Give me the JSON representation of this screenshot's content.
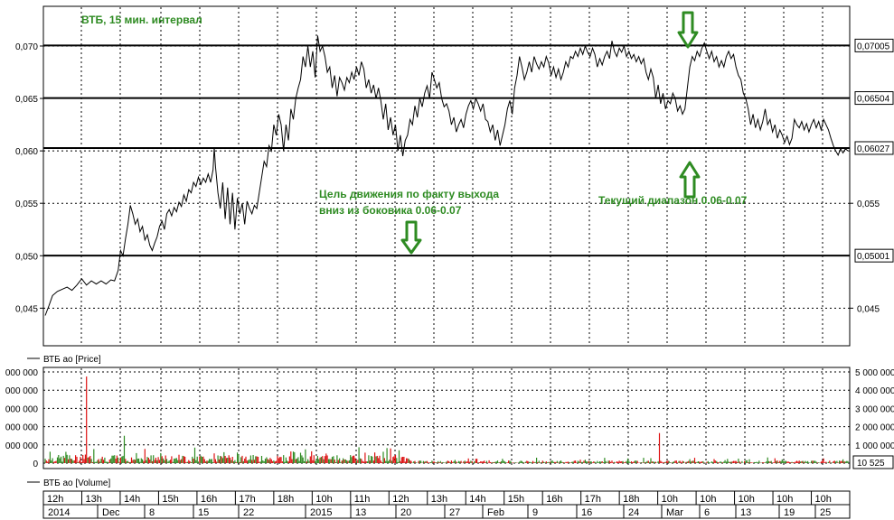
{
  "chart_data": {
    "type": "line",
    "title": "ВТБ, 15 мин. интервал",
    "price_legend": "ВТБ ао [Price]",
    "volume_legend": "ВТБ ao [Volume]",
    "ylim": [
      0.0415,
      0.0737
    ],
    "y_ticks": [
      {
        "value": 0.045,
        "label": "0,045"
      },
      {
        "value": 0.05,
        "label": "0,050"
      },
      {
        "value": 0.055,
        "label": "0,055"
      },
      {
        "value": 0.06,
        "label": "0,060"
      },
      {
        "value": 0.065,
        "label": "0,065"
      },
      {
        "value": 0.07,
        "label": "0,070"
      }
    ],
    "right_ticks": [
      {
        "value": 0.055,
        "label": "0,055"
      },
      {
        "value": 0.045,
        "label": "0,045"
      }
    ],
    "levels": [
      {
        "value": 0.07005,
        "label": "0,07005"
      },
      {
        "value": 0.06504,
        "label": "0,06504"
      },
      {
        "value": 0.06027,
        "label": "0,06027"
      },
      {
        "value": 0.05001,
        "label": "0,05001"
      }
    ],
    "annotations": [
      {
        "text": "Цель движения по факту выхода",
        "color": "#2e8b22"
      },
      {
        "text": "вниз из боковика 0.06-0.07",
        "color": "#2e8b22"
      },
      {
        "text": "Текущий диапазон 0.06-0.07",
        "color": "#2e8b22"
      }
    ],
    "price_series": [
      [
        0,
        0.0443
      ],
      [
        3,
        0.0452
      ],
      [
        6,
        0.0462
      ],
      [
        10,
        0.0466
      ],
      [
        14,
        0.0468
      ],
      [
        18,
        0.047
      ],
      [
        22,
        0.0467
      ],
      [
        26,
        0.0472
      ],
      [
        30,
        0.0478
      ],
      [
        34,
        0.0472
      ],
      [
        38,
        0.0476
      ],
      [
        42,
        0.0473
      ],
      [
        46,
        0.0476
      ],
      [
        50,
        0.0473
      ],
      [
        54,
        0.0477
      ],
      [
        57,
        0.0476
      ],
      [
        60,
        0.0486
      ],
      [
        62,
        0.0505
      ],
      [
        64,
        0.05
      ],
      [
        66,
        0.0516
      ],
      [
        68,
        0.053
      ],
      [
        70,
        0.0548
      ],
      [
        72,
        0.054
      ],
      [
        74,
        0.053
      ],
      [
        76,
        0.0535
      ],
      [
        78,
        0.0523
      ],
      [
        80,
        0.0528
      ],
      [
        82,
        0.0515
      ],
      [
        84,
        0.052
      ],
      [
        86,
        0.051
      ],
      [
        88,
        0.0505
      ],
      [
        90,
        0.0512
      ],
      [
        92,
        0.0518
      ],
      [
        94,
        0.0528
      ],
      [
        96,
        0.0533
      ],
      [
        98,
        0.0525
      ],
      [
        100,
        0.054
      ],
      [
        102,
        0.0544
      ],
      [
        104,
        0.0538
      ],
      [
        106,
        0.0546
      ],
      [
        108,
        0.0542
      ],
      [
        110,
        0.0551
      ],
      [
        112,
        0.0547
      ],
      [
        114,
        0.0558
      ],
      [
        116,
        0.0552
      ],
      [
        118,
        0.0563
      ],
      [
        120,
        0.056
      ],
      [
        122,
        0.057
      ],
      [
        124,
        0.0566
      ],
      [
        126,
        0.0575
      ],
      [
        128,
        0.0568
      ],
      [
        130,
        0.0574
      ],
      [
        132,
        0.057
      ],
      [
        134,
        0.0578
      ],
      [
        136,
        0.057
      ],
      [
        138,
        0.0582
      ],
      [
        139,
        0.0603
      ],
      [
        140,
        0.0585
      ],
      [
        142,
        0.056
      ],
      [
        144,
        0.0545
      ],
      [
        146,
        0.057
      ],
      [
        148,
        0.0535
      ],
      [
        150,
        0.0565
      ],
      [
        152,
        0.053
      ],
      [
        154,
        0.056
      ],
      [
        156,
        0.0525
      ],
      [
        158,
        0.0555
      ],
      [
        160,
        0.054
      ],
      [
        162,
        0.055
      ],
      [
        164,
        0.053
      ],
      [
        166,
        0.0552
      ],
      [
        168,
        0.0545
      ],
      [
        170,
        0.054
      ],
      [
        172,
        0.0548
      ],
      [
        174,
        0.0545
      ],
      [
        176,
        0.056
      ],
      [
        178,
        0.0575
      ],
      [
        180,
        0.059
      ],
      [
        182,
        0.0585
      ],
      [
        184,
        0.0605
      ],
      [
        186,
        0.06
      ],
      [
        188,
        0.0625
      ],
      [
        190,
        0.0615
      ],
      [
        192,
        0.0635
      ],
      [
        194,
        0.0625
      ],
      [
        196,
        0.06
      ],
      [
        198,
        0.0625
      ],
      [
        200,
        0.061
      ],
      [
        202,
        0.064
      ],
      [
        204,
        0.063
      ],
      [
        206,
        0.065
      ],
      [
        208,
        0.066
      ],
      [
        210,
        0.0668
      ],
      [
        212,
        0.069
      ],
      [
        214,
        0.068
      ],
      [
        216,
        0.07
      ],
      [
        218,
        0.068
      ],
      [
        220,
        0.0695
      ],
      [
        222,
        0.067
      ],
      [
        224,
        0.071
      ],
      [
        226,
        0.0695
      ],
      [
        228,
        0.07
      ],
      [
        230,
        0.069
      ],
      [
        232,
        0.0675
      ],
      [
        234,
        0.068
      ],
      [
        236,
        0.066
      ],
      [
        238,
        0.0672
      ],
      [
        240,
        0.0652
      ],
      [
        242,
        0.067
      ],
      [
        244,
        0.0665
      ],
      [
        246,
        0.0658
      ],
      [
        248,
        0.067
      ],
      [
        250,
        0.0665
      ],
      [
        252,
        0.0675
      ],
      [
        254,
        0.0668
      ],
      [
        256,
        0.068
      ],
      [
        258,
        0.0672
      ],
      [
        260,
        0.0685
      ],
      [
        262,
        0.0678
      ],
      [
        264,
        0.066
      ],
      [
        266,
        0.0668
      ],
      [
        268,
        0.0655
      ],
      [
        270,
        0.0663
      ],
      [
        272,
        0.065
      ],
      [
        274,
        0.066
      ],
      [
        276,
        0.0648
      ],
      [
        278,
        0.063
      ],
      [
        280,
        0.0645
      ],
      [
        282,
        0.062
      ],
      [
        284,
        0.0632
      ],
      [
        286,
        0.0615
      ],
      [
        288,
        0.0625
      ],
      [
        290,
        0.06
      ],
      [
        292,
        0.0615
      ],
      [
        294,
        0.0595
      ],
      [
        296,
        0.061
      ],
      [
        298,
        0.0615
      ],
      [
        300,
        0.063
      ],
      [
        302,
        0.0625
      ],
      [
        304,
        0.0643
      ],
      [
        306,
        0.0632
      ],
      [
        308,
        0.065
      ],
      [
        310,
        0.0642
      ],
      [
        312,
        0.0655
      ],
      [
        314,
        0.0662
      ],
      [
        316,
        0.065
      ],
      [
        318,
        0.0675
      ],
      [
        320,
        0.0668
      ],
      [
        322,
        0.066
      ],
      [
        324,
        0.0665
      ],
      [
        326,
        0.065
      ],
      [
        328,
        0.0642
      ],
      [
        330,
        0.0645
      ],
      [
        332,
        0.0638
      ],
      [
        334,
        0.0625
      ],
      [
        336,
        0.0632
      ],
      [
        338,
        0.0618
      ],
      [
        340,
        0.0625
      ],
      [
        342,
        0.063
      ],
      [
        344,
        0.0622
      ],
      [
        346,
        0.0635
      ],
      [
        348,
        0.0643
      ],
      [
        350,
        0.0648
      ],
      [
        352,
        0.064
      ],
      [
        354,
        0.065
      ],
      [
        356,
        0.0645
      ],
      [
        358,
        0.0638
      ],
      [
        360,
        0.0645
      ],
      [
        362,
        0.063
      ],
      [
        364,
        0.0628
      ],
      [
        366,
        0.0618
      ],
      [
        368,
        0.0625
      ],
      [
        370,
        0.061
      ],
      [
        372,
        0.062
      ],
      [
        374,
        0.0605
      ],
      [
        376,
        0.0615
      ],
      [
        378,
        0.0625
      ],
      [
        380,
        0.064
      ],
      [
        382,
        0.0648
      ],
      [
        384,
        0.0635
      ],
      [
        386,
        0.066
      ],
      [
        388,
        0.0672
      ],
      [
        390,
        0.069
      ],
      [
        392,
        0.068
      ],
      [
        394,
        0.0668
      ],
      [
        396,
        0.0675
      ],
      [
        398,
        0.0685
      ],
      [
        400,
        0.0675
      ],
      [
        402,
        0.069
      ],
      [
        404,
        0.0683
      ],
      [
        406,
        0.0678
      ],
      [
        408,
        0.0685
      ],
      [
        410,
        0.068
      ],
      [
        412,
        0.069
      ],
      [
        414,
        0.0684
      ],
      [
        416,
        0.0672
      ],
      [
        418,
        0.068
      ],
      [
        420,
        0.067
      ],
      [
        422,
        0.0678
      ],
      [
        424,
        0.0668
      ],
      [
        426,
        0.0675
      ],
      [
        428,
        0.0685
      ],
      [
        430,
        0.068
      ],
      [
        432,
        0.069
      ],
      [
        434,
        0.0688
      ],
      [
        436,
        0.0695
      ],
      [
        438,
        0.069
      ],
      [
        440,
        0.0698
      ],
      [
        442,
        0.0692
      ],
      [
        444,
        0.07
      ],
      [
        446,
        0.0694
      ],
      [
        448,
        0.069
      ],
      [
        450,
        0.0698
      ],
      [
        452,
        0.0692
      ],
      [
        454,
        0.068
      ],
      [
        456,
        0.0688
      ],
      [
        458,
        0.0682
      ],
      [
        460,
        0.069
      ],
      [
        462,
        0.0695
      ],
      [
        464,
        0.0688
      ],
      [
        466,
        0.0705
      ],
      [
        468,
        0.0695
      ],
      [
        470,
        0.069
      ],
      [
        472,
        0.0698
      ],
      [
        474,
        0.0694
      ],
      [
        476,
        0.07
      ],
      [
        478,
        0.069
      ],
      [
        480,
        0.0695
      ],
      [
        482,
        0.0688
      ],
      [
        484,
        0.0692
      ],
      [
        486,
        0.0685
      ],
      [
        488,
        0.069
      ],
      [
        490,
        0.0683
      ],
      [
        492,
        0.0688
      ],
      [
        494,
        0.0675
      ],
      [
        496,
        0.0668
      ],
      [
        498,
        0.0678
      ],
      [
        500,
        0.067
      ],
      [
        502,
        0.065
      ],
      [
        504,
        0.0663
      ],
      [
        506,
        0.0645
      ],
      [
        508,
        0.0655
      ],
      [
        510,
        0.064
      ],
      [
        512,
        0.0648
      ],
      [
        514,
        0.0645
      ],
      [
        516,
        0.0655
      ],
      [
        518,
        0.065
      ],
      [
        520,
        0.0638
      ],
      [
        522,
        0.0643
      ],
      [
        524,
        0.0635
      ],
      [
        526,
        0.064
      ],
      [
        528,
        0.066
      ],
      [
        530,
        0.068
      ],
      [
        532,
        0.069
      ],
      [
        534,
        0.0686
      ],
      [
        536,
        0.0695
      ],
      [
        538,
        0.069
      ],
      [
        540,
        0.0698
      ],
      [
        542,
        0.0703
      ],
      [
        544,
        0.0695
      ],
      [
        546,
        0.0688
      ],
      [
        548,
        0.0695
      ],
      [
        550,
        0.0685
      ],
      [
        552,
        0.069
      ],
      [
        554,
        0.068
      ],
      [
        556,
        0.0686
      ],
      [
        558,
        0.068
      ],
      [
        560,
        0.069
      ],
      [
        562,
        0.0695
      ],
      [
        564,
        0.0688
      ],
      [
        566,
        0.0692
      ],
      [
        568,
        0.068
      ],
      [
        570,
        0.0672
      ],
      [
        572,
        0.0668
      ],
      [
        574,
        0.0655
      ],
      [
        576,
        0.065
      ],
      [
        578,
        0.064
      ],
      [
        580,
        0.0625
      ],
      [
        582,
        0.0635
      ],
      [
        584,
        0.0622
      ],
      [
        586,
        0.063
      ],
      [
        588,
        0.062
      ],
      [
        590,
        0.0628
      ],
      [
        592,
        0.064
      ],
      [
        594,
        0.0625
      ],
      [
        596,
        0.063
      ],
      [
        598,
        0.0618
      ],
      [
        600,
        0.0625
      ],
      [
        602,
        0.0612
      ],
      [
        604,
        0.062
      ],
      [
        606,
        0.0615
      ],
      [
        608,
        0.0608
      ],
      [
        610,
        0.0614
      ],
      [
        612,
        0.0606
      ],
      [
        614,
        0.0612
      ],
      [
        616,
        0.063
      ],
      [
        618,
        0.0625
      ],
      [
        620,
        0.0622
      ],
      [
        622,
        0.0628
      ],
      [
        624,
        0.062
      ],
      [
        626,
        0.0626
      ],
      [
        628,
        0.0618
      ],
      [
        630,
        0.0625
      ],
      [
        632,
        0.063
      ],
      [
        634,
        0.0622
      ],
      [
        636,
        0.0628
      ],
      [
        638,
        0.062
      ],
      [
        640,
        0.063
      ],
      [
        642,
        0.0625
      ],
      [
        644,
        0.062
      ],
      [
        646,
        0.0612
      ],
      [
        648,
        0.0605
      ],
      [
        650,
        0.06
      ],
      [
        652,
        0.0596
      ],
      [
        654,
        0.0602
      ],
      [
        656,
        0.0598
      ],
      [
        658,
        0.0602
      ],
      [
        660,
        0.06
      ]
    ],
    "x_max": 660,
    "volume_ylim": [
      0,
      5200000
    ],
    "volume_ticks": [
      {
        "value": 0,
        "left": "0",
        "right": "0"
      },
      {
        "value": 1000000,
        "left": "000 000",
        "right": "1 000 000"
      },
      {
        "value": 2000000,
        "left": "000 000",
        "right": "2 000 000"
      },
      {
        "value": 3000000,
        "left": "000 000",
        "right": "3 000 000"
      },
      {
        "value": 4000000,
        "left": "000 000",
        "right": "4 000 000"
      },
      {
        "value": 5000000,
        "left": "000 000",
        "right": "5 000 000"
      }
    ],
    "volume_last": "10 525",
    "volume_spikes": [
      {
        "x": 34,
        "value": 4750000
      },
      {
        "x": 65,
        "value": 1500000
      },
      {
        "x": 505,
        "value": 1650000
      }
    ],
    "time_labels": [
      "12h",
      "13h",
      "14h",
      "15h",
      "16h",
      "17h",
      "18h",
      "10h",
      "11h",
      "12h",
      "13h",
      "14h",
      "15h",
      "16h",
      "17h",
      "18h",
      "10h",
      "10h",
      "10h",
      "10h",
      "10h"
    ],
    "date_labels": [
      "2014",
      "Dec",
      "8",
      "15",
      "22",
      "2015",
      "13",
      "20",
      "27",
      "Feb",
      "9",
      "16",
      "24",
      "Mar",
      "6",
      "13",
      "19",
      "25"
    ]
  }
}
